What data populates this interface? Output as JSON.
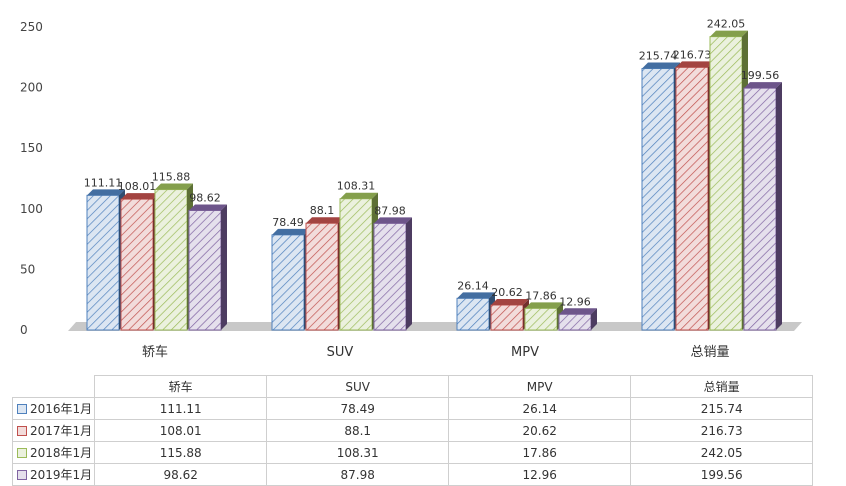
{
  "chart_data": {
    "type": "bar",
    "title": "",
    "xlabel": "",
    "ylabel": "",
    "ylim": [
      0,
      250
    ],
    "yticks": [
      0,
      50,
      100,
      150,
      200,
      250
    ],
    "categories": [
      "轿车",
      "SUV",
      "MPV",
      "总销量"
    ],
    "series": [
      {
        "name": "2016年1月",
        "color": "#4f81bd",
        "fill": "#dce6f2",
        "values": [
          111.11,
          78.49,
          26.14,
          215.74
        ]
      },
      {
        "name": "2017年1月",
        "color": "#c0504d",
        "fill": "#f2dcdb",
        "values": [
          108.01,
          88.1,
          20.62,
          216.73
        ]
      },
      {
        "name": "2018年1月",
        "color": "#9bbb59",
        "fill": "#ebf1de",
        "values": [
          115.88,
          108.31,
          17.86,
          242.05
        ]
      },
      {
        "name": "2019年1月",
        "color": "#8064a2",
        "fill": "#e5e0ec",
        "values": [
          98.62,
          87.98,
          12.96,
          199.56
        ]
      }
    ],
    "data_labels": [
      [
        "111.11",
        "78.49",
        "26.14",
        "215.74"
      ],
      [
        "108.01",
        "88.1",
        "20.62",
        "216.73"
      ],
      [
        "115.88",
        "108.31",
        "17.86",
        "242.05"
      ],
      [
        "98.62",
        "87.98",
        "12.96",
        "199.56"
      ]
    ],
    "grid": false,
    "legend": "data-table-below"
  },
  "table": {
    "headers": [
      "轿车",
      "SUV",
      "MPV",
      "总销量"
    ],
    "rows": [
      {
        "label": "2016年1月",
        "cells": [
          "111.11",
          "78.49",
          "26.14",
          "215.74"
        ]
      },
      {
        "label": "2017年1月",
        "cells": [
          "108.01",
          "88.1",
          "20.62",
          "216.73"
        ]
      },
      {
        "label": "2018年1月",
        "cells": [
          "115.88",
          "108.31",
          "17.86",
          "242.05"
        ]
      },
      {
        "label": "2019年1月",
        "cells": [
          "98.62",
          "87.98",
          "12.96",
          "199.56"
        ]
      }
    ]
  }
}
